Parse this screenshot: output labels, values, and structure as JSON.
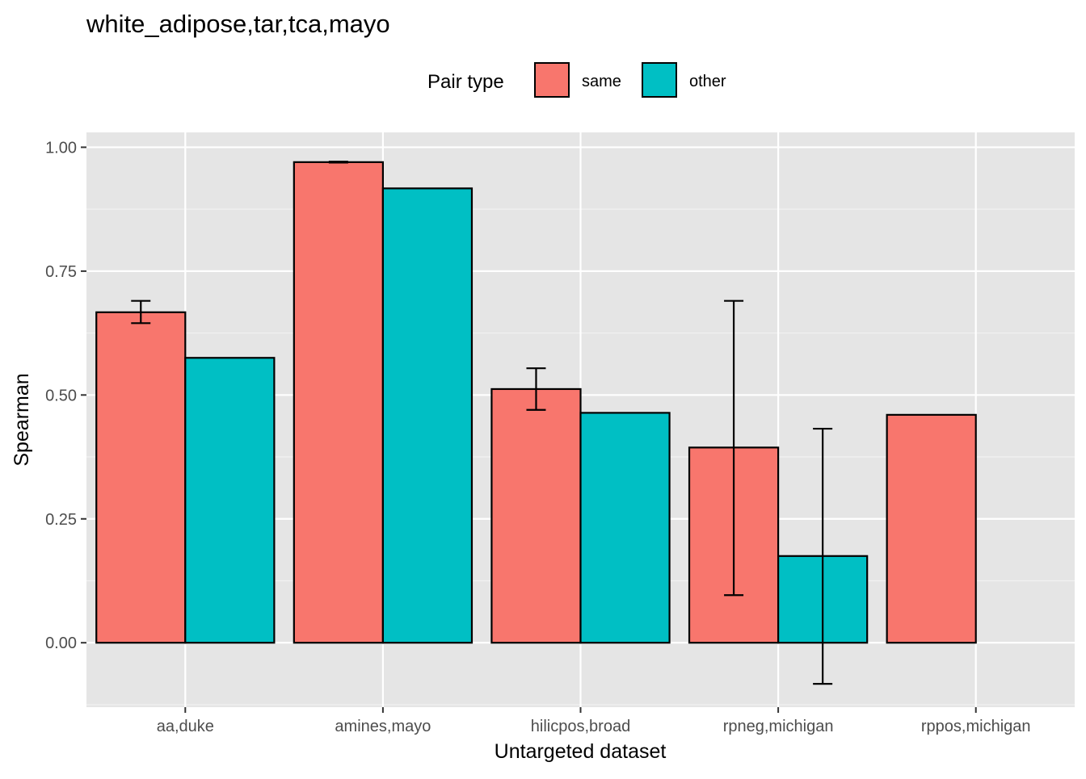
{
  "chart_data": {
    "type": "bar",
    "title": "white_adipose,tar,tca,mayo",
    "xlabel": "Untargeted dataset",
    "ylabel": "Spearman",
    "categories": [
      "aa,duke",
      "amines,mayo",
      "hilicpos,broad",
      "rpneg,michigan",
      "rppos,michigan"
    ],
    "yticks": [
      "0.00",
      "0.25",
      "0.50",
      "0.75",
      "1.00"
    ],
    "ylim": [
      -0.13,
      1.03
    ],
    "legend": {
      "title": "Pair type",
      "position": "top"
    },
    "series": [
      {
        "name": "same",
        "color": "#F8766D",
        "values": [
          0.667,
          0.97,
          0.512,
          0.394,
          0.46
        ],
        "error_low": [
          0.645,
          0.969,
          0.47,
          0.096,
          null
        ],
        "error_high": [
          0.69,
          0.971,
          0.554,
          0.69,
          null
        ]
      },
      {
        "name": "other",
        "color": "#00BFC4",
        "values": [
          0.575,
          0.917,
          0.464,
          0.175,
          null
        ],
        "error_low": [
          null,
          null,
          null,
          -0.083,
          null
        ],
        "error_high": [
          null,
          null,
          null,
          0.432,
          null
        ]
      }
    ],
    "grid": true,
    "panel_background": "#E5E5E5"
  }
}
